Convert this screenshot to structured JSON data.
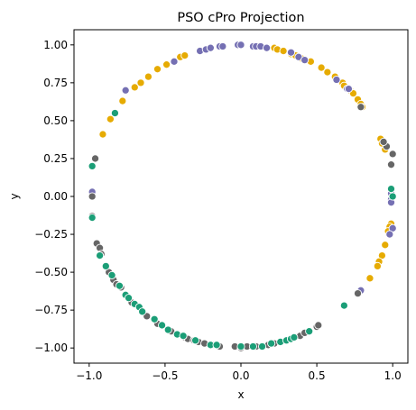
{
  "chart_data": {
    "type": "scatter",
    "title": "PSO cPro Projection",
    "xlabel": "x",
    "ylabel": "y",
    "xlim": [
      -1.1,
      1.1
    ],
    "ylim": [
      -1.1,
      1.1
    ],
    "xticks": [
      -1.0,
      -0.5,
      0.0,
      0.5,
      1.0
    ],
    "yticks": [
      -1.0,
      -0.75,
      -0.5,
      -0.25,
      0.0,
      0.25,
      0.5,
      0.75,
      1.0
    ],
    "xtick_labels": [
      "−1.0",
      "−0.5",
      "0.0",
      "0.5",
      "1.0"
    ],
    "ytick_labels": [
      "−1.00",
      "−0.75",
      "−0.50",
      "−0.25",
      "0.00",
      "0.25",
      "0.50",
      "0.75",
      "1.00"
    ],
    "grid": false,
    "marker_edge": "#ffffff",
    "series": [
      {
        "color": "#e6ab02",
        "points": [
          [
            -0.91,
            0.41
          ],
          [
            -0.86,
            0.51
          ],
          [
            -0.78,
            0.63
          ],
          [
            -0.7,
            0.72
          ],
          [
            -0.66,
            0.75
          ],
          [
            -0.61,
            0.79
          ],
          [
            -0.55,
            0.84
          ],
          [
            -0.49,
            0.87
          ],
          [
            -0.4,
            0.92
          ],
          [
            -0.37,
            0.93
          ],
          [
            0.22,
            0.98
          ],
          [
            0.24,
            0.97
          ],
          [
            0.28,
            0.96
          ],
          [
            0.33,
            0.94
          ],
          [
            0.36,
            0.93
          ],
          [
            0.4,
            0.91
          ],
          [
            0.46,
            0.89
          ],
          [
            0.53,
            0.85
          ],
          [
            0.57,
            0.82
          ],
          [
            0.62,
            0.79
          ],
          [
            0.67,
            0.75
          ],
          [
            0.68,
            0.73
          ],
          [
            0.72,
            0.7
          ],
          [
            0.74,
            0.68
          ],
          [
            0.77,
            0.64
          ],
          [
            0.79,
            0.61
          ],
          [
            0.8,
            0.59
          ],
          [
            0.92,
            0.38
          ],
          [
            0.93,
            0.35
          ],
          [
            0.95,
            0.31
          ],
          [
            0.99,
            -0.18
          ],
          [
            0.98,
            -0.2
          ],
          [
            0.97,
            -0.23
          ],
          [
            0.95,
            -0.32
          ],
          [
            0.93,
            -0.39
          ],
          [
            0.91,
            -0.43
          ],
          [
            0.9,
            -0.46
          ],
          [
            0.85,
            -0.54
          ]
        ]
      },
      {
        "color": "#7570b3",
        "points": [
          [
            -0.44,
            0.89
          ],
          [
            -0.27,
            0.96
          ],
          [
            -0.23,
            0.97
          ],
          [
            -0.2,
            0.98
          ],
          [
            -0.14,
            0.99
          ],
          [
            -0.12,
            0.99
          ],
          [
            -0.02,
            1.0
          ],
          [
            0.0,
            1.0
          ],
          [
            0.08,
            0.99
          ],
          [
            0.1,
            0.99
          ],
          [
            0.13,
            0.99
          ],
          [
            0.17,
            0.98
          ],
          [
            0.33,
            0.95
          ],
          [
            0.38,
            0.92
          ],
          [
            0.42,
            0.9
          ],
          [
            0.63,
            0.77
          ],
          [
            0.7,
            0.71
          ],
          [
            0.71,
            0.71
          ],
          [
            -0.76,
            0.7
          ],
          [
            0.99,
            0.02
          ],
          [
            0.99,
            -0.02
          ],
          [
            0.99,
            -0.04
          ],
          [
            1.0,
            -0.21
          ],
          [
            0.98,
            -0.25
          ],
          [
            0.79,
            -0.62
          ],
          [
            -0.98,
            0.03
          ]
        ]
      },
      {
        "color": "#666666",
        "points": [
          [
            -0.96,
            0.25
          ],
          [
            -0.98,
            0.0
          ],
          [
            -0.98,
            -0.13
          ],
          [
            -0.95,
            -0.31
          ],
          [
            -0.93,
            -0.34
          ],
          [
            -0.92,
            -0.38
          ],
          [
            -0.87,
            -0.5
          ],
          [
            -0.84,
            -0.55
          ],
          [
            -0.82,
            -0.58
          ],
          [
            -0.79,
            -0.6
          ],
          [
            -0.72,
            -0.7
          ],
          [
            -0.62,
            -0.79
          ],
          [
            -0.55,
            -0.84
          ],
          [
            -0.46,
            -0.89
          ],
          [
            -0.37,
            -0.93
          ],
          [
            -0.35,
            -0.94
          ],
          [
            -0.31,
            -0.95
          ],
          [
            -0.28,
            -0.96
          ],
          [
            -0.24,
            -0.97
          ],
          [
            -0.19,
            -0.98
          ],
          [
            -0.14,
            -0.99
          ],
          [
            -0.04,
            -0.99
          ],
          [
            0.0,
            -1.0
          ],
          [
            0.04,
            -0.99
          ],
          [
            0.1,
            -0.99
          ],
          [
            0.18,
            -0.98
          ],
          [
            0.22,
            -0.97
          ],
          [
            0.39,
            -0.92
          ],
          [
            0.42,
            -0.9
          ],
          [
            0.5,
            -0.86
          ],
          [
            0.51,
            -0.85
          ],
          [
            0.77,
            -0.64
          ],
          [
            0.99,
            0.21
          ],
          [
            1.0,
            0.28
          ],
          [
            0.96,
            0.33
          ],
          [
            0.94,
            0.36
          ],
          [
            0.79,
            0.59
          ]
        ]
      },
      {
        "color": "#1b9e77",
        "points": [
          [
            -0.83,
            0.55
          ],
          [
            -0.98,
            0.2
          ],
          [
            -0.98,
            -0.14
          ],
          [
            -0.93,
            -0.39
          ],
          [
            -0.89,
            -0.46
          ],
          [
            -0.85,
            -0.52
          ],
          [
            -0.8,
            -0.59
          ],
          [
            -0.76,
            -0.65
          ],
          [
            -0.74,
            -0.67
          ],
          [
            -0.7,
            -0.71
          ],
          [
            -0.67,
            -0.73
          ],
          [
            -0.65,
            -0.76
          ],
          [
            -0.57,
            -0.81
          ],
          [
            -0.52,
            -0.85
          ],
          [
            -0.48,
            -0.88
          ],
          [
            -0.42,
            -0.91
          ],
          [
            -0.38,
            -0.92
          ],
          [
            -0.3,
            -0.95
          ],
          [
            -0.2,
            -0.98
          ],
          [
            -0.16,
            -0.98
          ],
          [
            0.0,
            -0.99
          ],
          [
            0.08,
            -0.99
          ],
          [
            0.14,
            -0.99
          ],
          [
            0.2,
            -0.97
          ],
          [
            0.26,
            -0.96
          ],
          [
            0.3,
            -0.95
          ],
          [
            0.33,
            -0.94
          ],
          [
            0.35,
            -0.93
          ],
          [
            0.45,
            -0.89
          ],
          [
            0.68,
            -0.72
          ],
          [
            1.0,
            0.0
          ],
          [
            0.99,
            0.05
          ]
        ]
      }
    ]
  }
}
